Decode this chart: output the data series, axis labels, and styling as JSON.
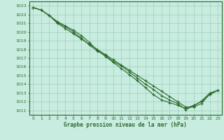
{
  "title": "Graphe pression niveau de la mer (hPa)",
  "xlim": [
    -0.5,
    23.5
  ],
  "ylim": [
    1010.5,
    1023.5
  ],
  "xlabel_ticks": [
    0,
    1,
    2,
    3,
    4,
    5,
    6,
    7,
    8,
    9,
    10,
    11,
    12,
    13,
    14,
    15,
    16,
    17,
    18,
    19,
    20,
    21,
    22,
    23
  ],
  "ylabel_ticks": [
    1011,
    1012,
    1013,
    1014,
    1015,
    1016,
    1017,
    1018,
    1019,
    1020,
    1021,
    1022,
    1023
  ],
  "line1_x": [
    0,
    1,
    2,
    3,
    4,
    5,
    6,
    7,
    8,
    9,
    10,
    11,
    12,
    13,
    14,
    15,
    16,
    17,
    18,
    19,
    20,
    21,
    22,
    23
  ],
  "line1_y": [
    1022.8,
    1022.5,
    1021.9,
    1021.0,
    1020.4,
    1019.8,
    1019.2,
    1018.6,
    1018.0,
    1017.4,
    1016.8,
    1016.2,
    1015.6,
    1015.0,
    1014.4,
    1013.8,
    1013.2,
    1012.6,
    1012.0,
    1011.4,
    1011.4,
    1011.8,
    1012.9,
    1013.3
  ],
  "line2_x": [
    0,
    1,
    2,
    3,
    4,
    5,
    6,
    7,
    8,
    9,
    10,
    11,
    12,
    13,
    14,
    15,
    16,
    17,
    18,
    19,
    20,
    21,
    22,
    23
  ],
  "line2_y": [
    1022.8,
    1022.5,
    1021.9,
    1021.1,
    1020.6,
    1020.0,
    1019.3,
    1018.5,
    1017.8,
    1017.3,
    1016.6,
    1016.1,
    1015.4,
    1014.7,
    1014.0,
    1013.4,
    1012.7,
    1012.2,
    1011.8,
    1011.1,
    1011.5,
    1012.1,
    1013.0,
    1013.3
  ],
  "line3_x": [
    0,
    1,
    2,
    3,
    4,
    5,
    6,
    7,
    8,
    9,
    10,
    11,
    12,
    13,
    14,
    15,
    16,
    17,
    18,
    19,
    20,
    21,
    22,
    23
  ],
  "line3_y": [
    1022.8,
    1022.5,
    1021.9,
    1021.2,
    1020.7,
    1020.2,
    1019.6,
    1018.8,
    1017.9,
    1017.2,
    1016.5,
    1015.8,
    1015.1,
    1014.4,
    1013.6,
    1012.8,
    1012.2,
    1011.9,
    1011.6,
    1011.2,
    1011.6,
    1012.0,
    1012.8,
    1013.3
  ],
  "line_color": "#2d6a2d",
  "bg_color": "#c8ece0",
  "grid_color": "#9ecfb8",
  "tick_label_color": "#2d6a2d",
  "title_color": "#2d6a2d",
  "marker": "+",
  "markersize": 3.5,
  "linewidth": 0.8
}
